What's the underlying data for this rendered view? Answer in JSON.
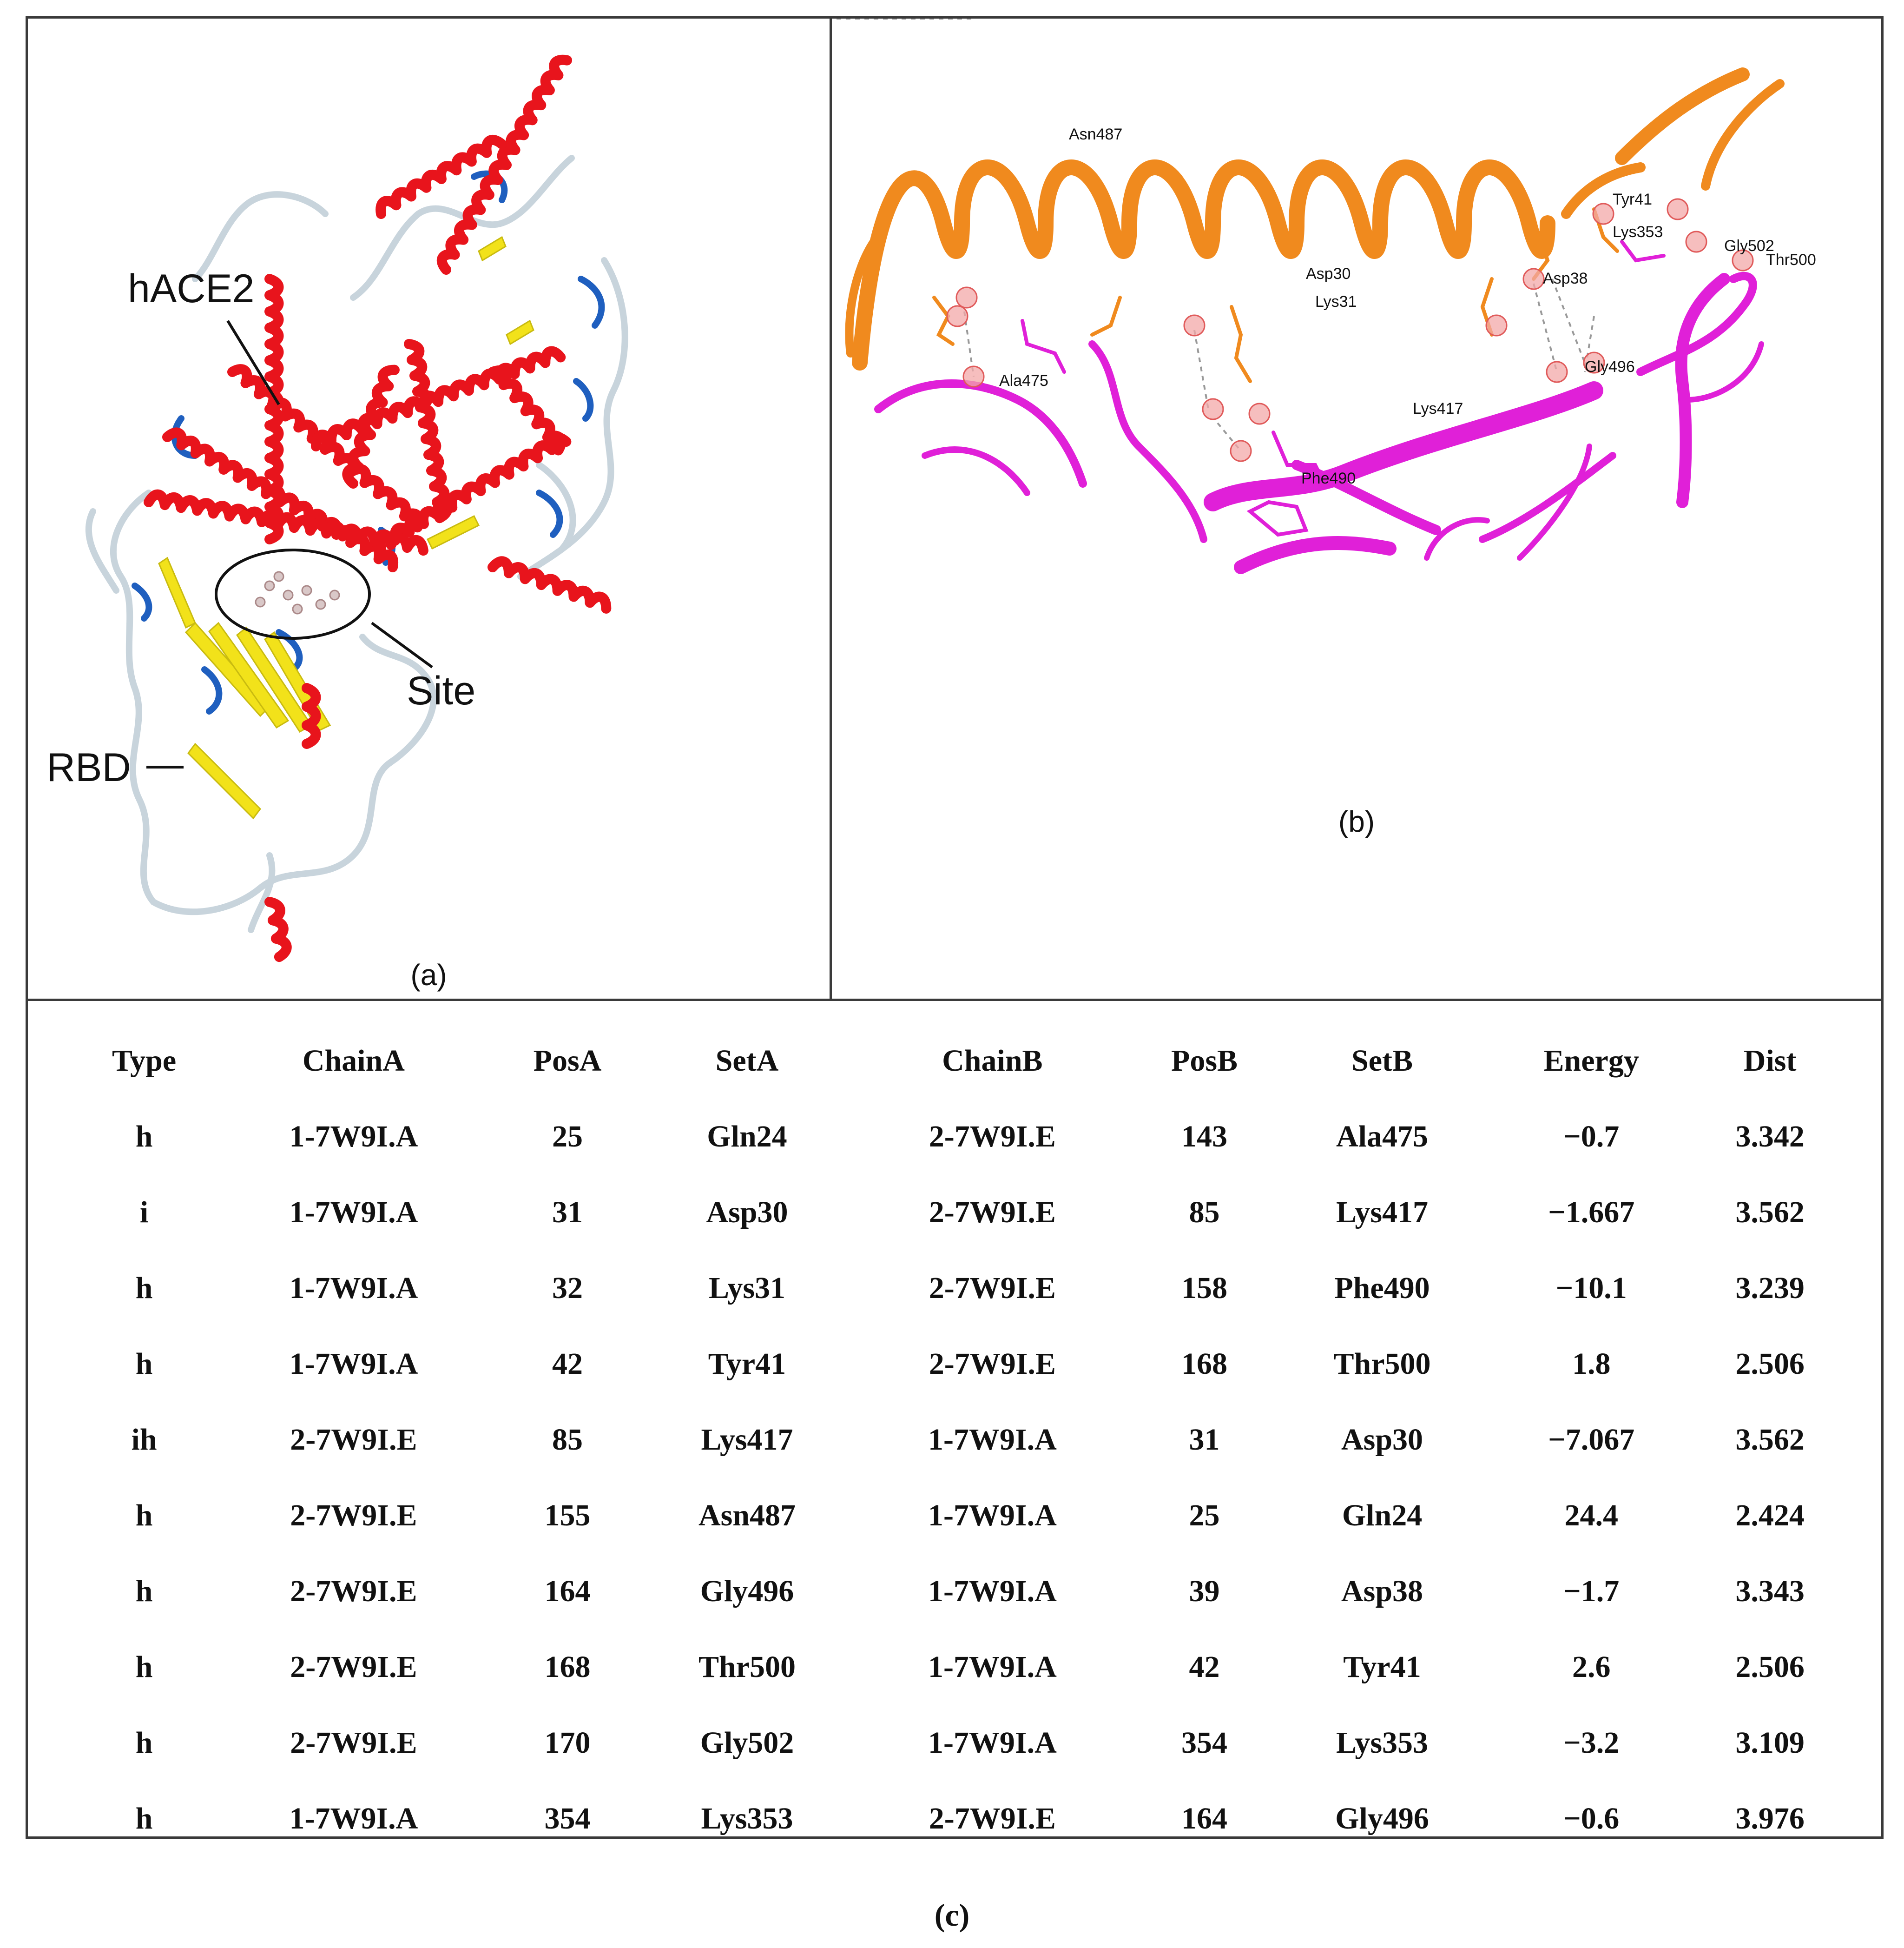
{
  "panel_a": {
    "caption": "(a)",
    "labels": {
      "hace2": "hACE2",
      "site": "Site",
      "rbd": "RBD"
    }
  },
  "panel_b": {
    "caption": "(b)",
    "residue_labels": [
      "Asn487",
      "Ala475",
      "Asp30",
      "Lys31",
      "Lys417",
      "Phe490",
      "Asp38",
      "Gly496",
      "Lys353",
      "Tyr41",
      "Gly502",
      "Thr500"
    ]
  },
  "panel_c": {
    "caption": "(c)",
    "columns": [
      "Type",
      "ChainA",
      "PosA",
      "SetA",
      "ChainB",
      "PosB",
      "SetB",
      "Energy",
      "Dist"
    ],
    "rows": [
      [
        "h",
        "1-7W9I.A",
        "25",
        "Gln24",
        "2-7W9I.E",
        "143",
        "Ala475",
        "−0.7",
        "3.342"
      ],
      [
        "i",
        "1-7W9I.A",
        "31",
        "Asp30",
        "2-7W9I.E",
        "85",
        "Lys417",
        "−1.667",
        "3.562"
      ],
      [
        "h",
        "1-7W9I.A",
        "32",
        "Lys31",
        "2-7W9I.E",
        "158",
        "Phe490",
        "−10.1",
        "3.239"
      ],
      [
        "h",
        "1-7W9I.A",
        "42",
        "Tyr41",
        "2-7W9I.E",
        "168",
        "Thr500",
        "1.8",
        "2.506"
      ],
      [
        "ih",
        "2-7W9I.E",
        "85",
        "Lys417",
        "1-7W9I.A",
        "31",
        "Asp30",
        "−7.067",
        "3.562"
      ],
      [
        "h",
        "2-7W9I.E",
        "155",
        "Asn487",
        "1-7W9I.A",
        "25",
        "Gln24",
        "24.4",
        "2.424"
      ],
      [
        "h",
        "2-7W9I.E",
        "164",
        "Gly496",
        "1-7W9I.A",
        "39",
        "Asp38",
        "−1.7",
        "3.343"
      ],
      [
        "h",
        "2-7W9I.E",
        "168",
        "Thr500",
        "1-7W9I.A",
        "42",
        "Tyr41",
        "2.6",
        "2.506"
      ],
      [
        "h",
        "2-7W9I.E",
        "170",
        "Gly502",
        "1-7W9I.A",
        "354",
        "Lys353",
        "−3.2",
        "3.109"
      ],
      [
        "h",
        "1-7W9I.A",
        "354",
        "Lys353",
        "2-7W9I.E",
        "164",
        "Gly496",
        "−0.6",
        "3.976"
      ]
    ]
  },
  "colors": {
    "helix": "#e8141c",
    "sheet": "#f2e21a",
    "turn": "#1f5fbf",
    "coil": "#c8d4dc",
    "ace2_ribbon": "#f08a1e",
    "rbd_ribbon": "#e020d8"
  }
}
